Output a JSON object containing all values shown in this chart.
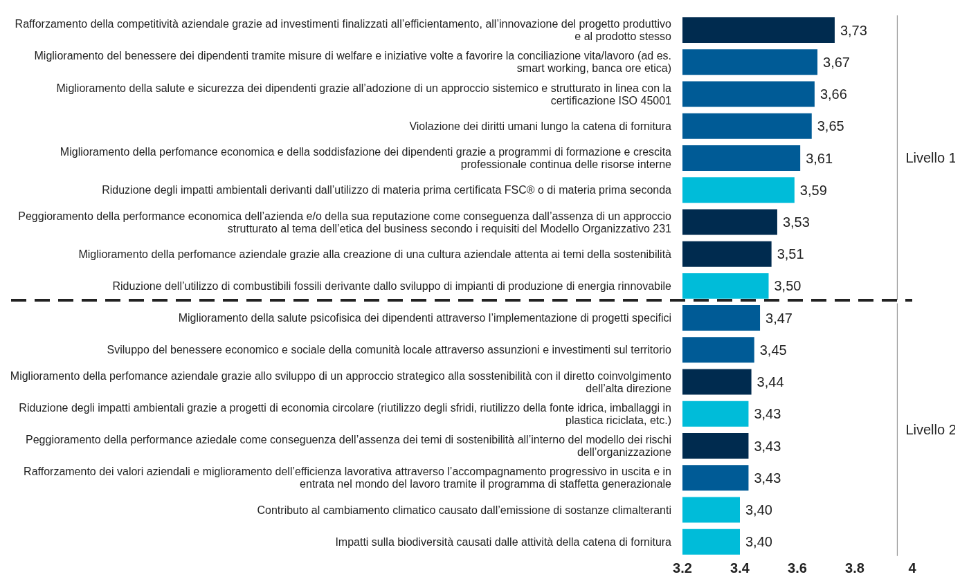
{
  "chart_data": {
    "type": "bar",
    "orientation": "horizontal",
    "categories": [
      "Rafforzamento della competitività aziendale grazie ad investimenti finalizzati all’efficientamento, all’innovazione del progetto produttivo e al prodotto stesso",
      "Miglioramento del benessere dei dipendenti tramite misure di welfare e iniziative volte a favorire la conciliazione vita/lavoro (ad es. smart working, banca ore etica)",
      "Miglioramento della salute e sicurezza dei dipendenti grazie all’adozione di un approccio sistemico e strutturato in linea con la certificazione ISO 45001",
      "Violazione dei diritti umani lungo la catena di fornitura",
      "Miglioramento della perfomance economica e della soddisfazione dei dipendenti grazie a programmi di formazione e crescita professionale continua delle risorse interne",
      "Riduzione degli impatti ambientali derivanti dall’utilizzo di materia prima certificata FSC® o di materia prima seconda",
      "Peggioramento della performance economica dell’azienda e/o della sua reputazione come conseguenza dall’assenza di un approccio strutturato al tema dell’etica del business secondo i requisiti del Modello Organizzativo 231",
      "Miglioramento della perfomance aziendale grazie alla creazione di una cultura aziendale attenta ai temi della sostenibilità",
      "Riduzione dell’utilizzo di combustibili fossili derivante dallo sviluppo di impianti di produzione di energia rinnovabile",
      "Miglioramento della salute psicofisica dei dipendenti attraverso l’implementazione di progetti specifici",
      "Sviluppo del benessere economico e sociale della comunità locale attraverso assunzioni e investimenti sul territorio",
      "Miglioramento della perfomance aziendale grazie allo sviluppo di un approccio strategico alla sosstenibilità con il diretto coinvolgimento dell’alta direzione",
      "Riduzione degli impatti ambientali grazie a progetti di economia circolare (riutilizzo degli sfridi, riutilizzo della fonte idrica, imballaggi in plastica riciclata, etc.)",
      "Peggioramento della performance aziedale come conseguenza dell’assenza dei temi di sostenibilità all’interno del modello dei rischi dell’organizzazione",
      "Rafforzamento dei valori aziendali e miglioramento dell’efficienza lavorativa attraverso l’accompagnamento progressivo in uscita e in entrata nel mondo del lavoro tramite il programma di staffetta generazionale",
      "Contributo al cambiamento climatico causato dall’emissione di sostanze climalteranti",
      "Impatti sulla biodiversità causati dalle attività della catena di fornitura"
    ],
    "values": [
      3.73,
      3.67,
      3.66,
      3.65,
      3.61,
      3.59,
      3.53,
      3.51,
      3.5,
      3.47,
      3.45,
      3.44,
      3.43,
      3.43,
      3.43,
      3.4,
      3.4
    ],
    "value_labels": [
      "3,73",
      "3,67",
      "3,66",
      "3,65",
      "3,61",
      "3,59",
      "3,53",
      "3,51",
      "3,50",
      "3,47",
      "3,45",
      "3,44",
      "3,43",
      "3,43",
      "3,43",
      "3,40",
      "3,40"
    ],
    "colors": [
      "#002b4f",
      "#005b96",
      "#005b96",
      "#005b96",
      "#005b96",
      "#00bcd9",
      "#002b4f",
      "#002b4f",
      "#00bcd9",
      "#005b96",
      "#005b96",
      "#002b4f",
      "#00bcd9",
      "#002b4f",
      "#005b96",
      "#00bcd9",
      "#00bcd9"
    ],
    "xlim": [
      3.2,
      4
    ],
    "xticks": [
      3.2,
      3.4,
      3.6,
      3.8,
      4
    ],
    "grid": false,
    "legend": false,
    "annotations": [
      "Livello 1",
      "Livello 2"
    ]
  }
}
